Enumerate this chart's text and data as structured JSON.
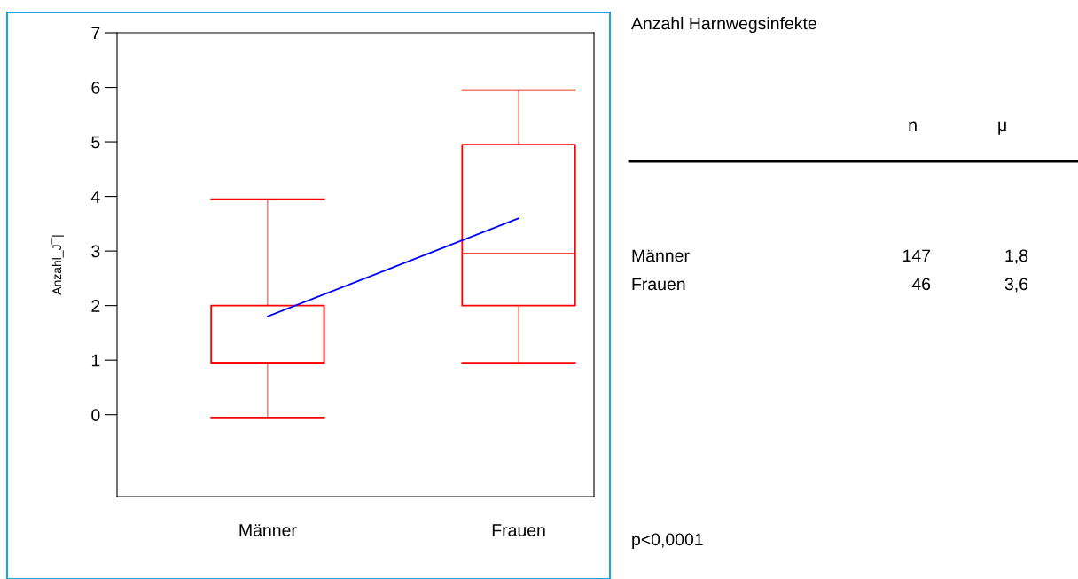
{
  "chart_data": [
    {
      "type": "box",
      "ylabel": "Anzahl_J¯|",
      "categories": [
        "Männer",
        "Frauen"
      ],
      "ylim": [
        -1.5,
        7
      ],
      "yticks": [
        0,
        1,
        2,
        3,
        4,
        5,
        6,
        7
      ],
      "grid": false,
      "legend": false,
      "series": [
        {
          "type": "box",
          "color": "#ff0000",
          "boxes": [
            {
              "low": -0.05,
              "q1": 0.95,
              "median": 0.95,
              "q3": 2,
              "high": 3.95
            },
            {
              "low": 0.95,
              "q1": 2,
              "median": 2.95,
              "q3": 4.95,
              "high": 5.95
            }
          ]
        },
        {
          "type": "line",
          "color": "#0000ff",
          "values": [
            1.8,
            3.6
          ]
        }
      ]
    },
    {
      "type": "other",
      "title": "Anzahl Harnwegsinfekte",
      "annotations": [
        "n",
        "μ",
        "Männer",
        "147",
        "1,8",
        "Frauen",
        "46",
        "3,6",
        "p<0,0001"
      ]
    }
  ]
}
